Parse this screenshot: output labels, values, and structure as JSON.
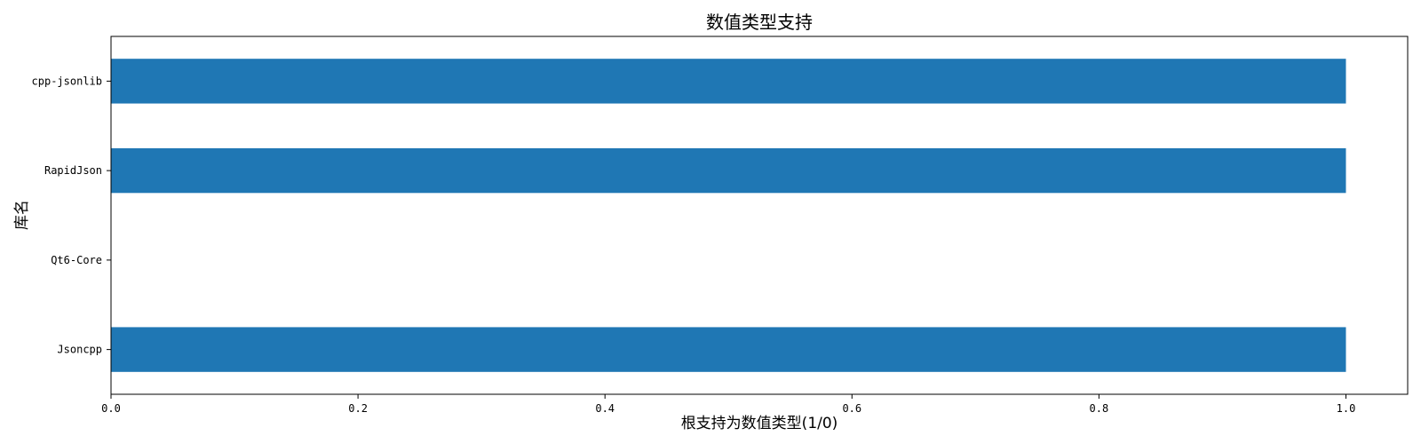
{
  "chart_data": {
    "type": "bar",
    "orientation": "horizontal",
    "title": "数值类型支持",
    "xlabel": "根支持为数值类型(1/0)",
    "ylabel": "库名",
    "categories": [
      "Jsoncpp",
      "Qt6-Core",
      "RapidJson",
      "cpp-jsonlib"
    ],
    "values": [
      1,
      0,
      1,
      1
    ],
    "xlim": [
      0,
      1.05
    ],
    "xticks": [
      0.0,
      0.2,
      0.4,
      0.6,
      0.8,
      1.0
    ],
    "xtick_labels": [
      "0.0",
      "0.2",
      "0.4",
      "0.6",
      "0.8",
      "1.0"
    ],
    "grid": false,
    "bar_color": "#1f77b4"
  }
}
